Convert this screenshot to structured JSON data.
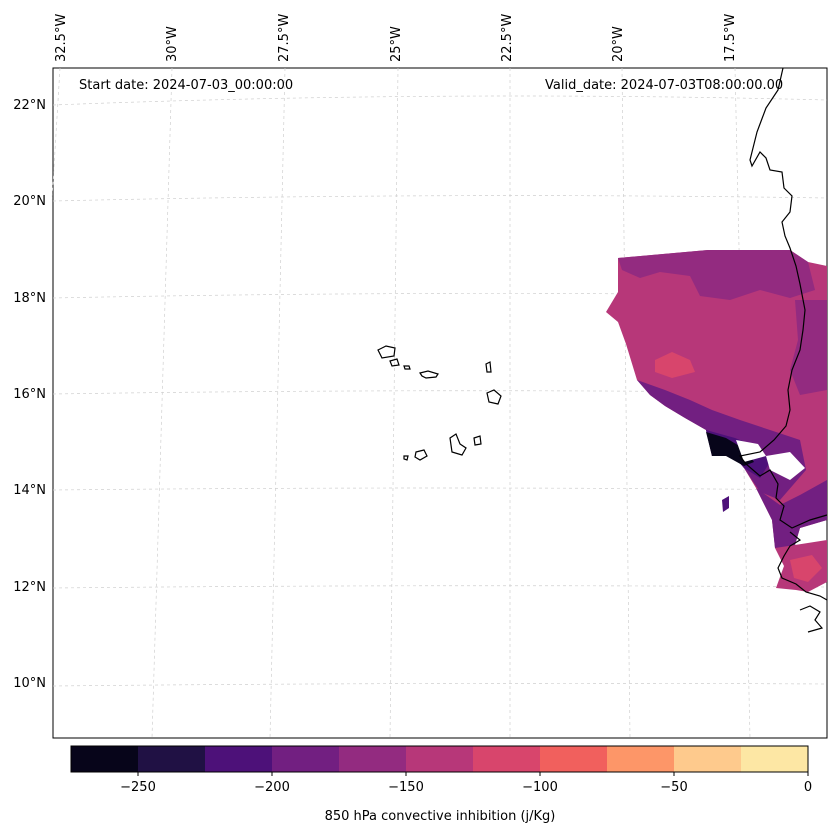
{
  "header": {
    "start_date": "Start date: 2024-07-03_00:00:00",
    "valid_date": "Valid_date: 2024-07-03T08:00:00.00"
  },
  "latitude_labels": [
    "22°N",
    "20°N",
    "18°N",
    "16°N",
    "14°N",
    "12°N",
    "10°N"
  ],
  "longitude_labels": [
    "32.5°W",
    "30°W",
    "27.5°W",
    "25°W",
    "22.5°W",
    "20°W",
    "17.5°W"
  ],
  "colorbar": {
    "label": "850 hPa convective inhibition (j/Kg)",
    "ticks": [
      "−250",
      "−200",
      "−150",
      "−100",
      "−50",
      "0"
    ],
    "levels": [
      -275,
      -250,
      -225,
      -200,
      -175,
      -150,
      -125,
      -100,
      -75,
      -50,
      -25,
      0
    ],
    "colors": [
      "#07051a",
      "#201144",
      "#4d1179",
      "#721f81",
      "#932b80",
      "#b73779",
      "#d8456c",
      "#f1605d",
      "#fd9668",
      "#feca8d",
      "#fde7a4"
    ]
  },
  "map": {
    "region": "Cape Verde islands and West African coast",
    "field": "850 hPa convective inhibition",
    "gridlines": "dashed light grey"
  }
}
